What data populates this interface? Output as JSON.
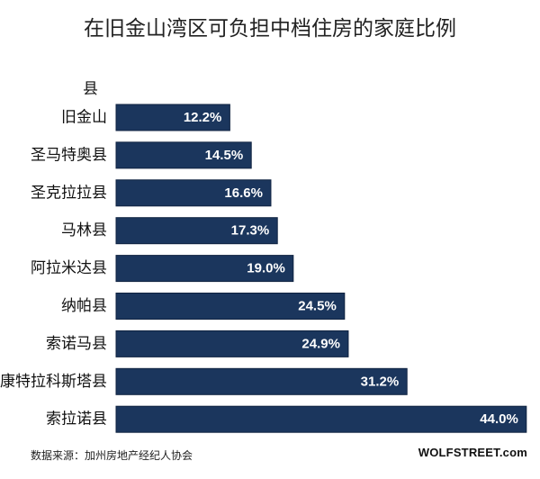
{
  "title": "在旧金山湾区可负担中档住房的家庭比例",
  "axis_header": "县",
  "source": "数据来源：加州房地产经纪人协会",
  "brand": "WOLFSTREET.com",
  "colors": {
    "bar": "#1b365d",
    "bar_border": "#0f2240",
    "label": "#ffffff"
  },
  "chart_data": {
    "type": "bar",
    "orientation": "horizontal",
    "title": "在旧金山湾区可负担中档住房的家庭比例",
    "ylabel": "县",
    "categories": [
      "旧金山",
      "圣马特奥县",
      "圣克拉拉县",
      "马林县",
      "阿拉米达县",
      "纳帕县",
      "索诺马县",
      "康特拉科斯塔县",
      "索拉诺县"
    ],
    "values": [
      12.2,
      14.5,
      16.6,
      17.3,
      19.0,
      24.5,
      24.9,
      31.2,
      44.0
    ],
    "value_labels": [
      "12.2%",
      "14.5%",
      "16.6%",
      "17.3%",
      "19.0%",
      "24.5%",
      "24.9%",
      "31.2%",
      "44.0%"
    ],
    "xlim": [
      0,
      44.5
    ],
    "grid": false,
    "legend": "none"
  }
}
